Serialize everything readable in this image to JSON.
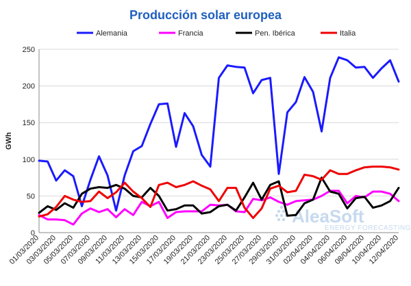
{
  "chart_data": {
    "type": "line",
    "title": "Producción solar europea",
    "ylabel": "GWh",
    "xlabel": "",
    "ylim": [
      0,
      250
    ],
    "yticks": [
      0,
      50,
      100,
      150,
      200,
      250
    ],
    "grid": "horizontal",
    "legend": "top",
    "x": [
      "01/03/2020",
      "02/03/2020",
      "03/03/2020",
      "04/03/2020",
      "05/03/2020",
      "06/03/2020",
      "07/03/2020",
      "08/03/2020",
      "09/03/2020",
      "10/03/2020",
      "11/03/2020",
      "12/03/2020",
      "13/03/2020",
      "14/03/2020",
      "15/03/2020",
      "16/03/2020",
      "17/03/2020",
      "18/03/2020",
      "19/03/2020",
      "20/03/2020",
      "21/03/2020",
      "22/03/2020",
      "23/03/2020",
      "24/03/2020",
      "25/03/2020",
      "26/03/2020",
      "27/03/2020",
      "28/03/2020",
      "29/03/2020",
      "30/03/2020",
      "31/03/2020",
      "01/04/2020",
      "02/04/2020",
      "03/04/2020",
      "04/04/2020",
      "05/04/2020",
      "06/04/2020",
      "07/04/2020",
      "08/04/2020",
      "09/04/2020",
      "10/04/2020",
      "11/04/2020",
      "12/04/2020"
    ],
    "xticks": [
      "01/03/2020",
      "03/03/2020",
      "05/03/2020",
      "07/03/2020",
      "09/03/2020",
      "11/03/2020",
      "13/03/2020",
      "15/03/2020",
      "17/03/2020",
      "19/03/2020",
      "21/03/2020",
      "23/03/2020",
      "25/03/2020",
      "27/03/2020",
      "29/03/2020",
      "31/03/2020",
      "02/04/2020",
      "04/04/2020",
      "06/04/2020",
      "08/04/2020",
      "10/04/2020",
      "12/04/2020"
    ],
    "series": [
      {
        "name": "Alemania",
        "color": "#1a1aff",
        "values": [
          98,
          97,
          71,
          85,
          77,
          36,
          72,
          104,
          78,
          30,
          78,
          111,
          118,
          148,
          175,
          176,
          117,
          163,
          145,
          106,
          90,
          211,
          228,
          226,
          225,
          190,
          208,
          211,
          80,
          164,
          178,
          212,
          192,
          138,
          211,
          239,
          235,
          225,
          226,
          211,
          224,
          235,
          206
        ]
      },
      {
        "name": "Francia",
        "color": "#ff00ff",
        "values": [
          24,
          18,
          18,
          17,
          11,
          26,
          33,
          28,
          32,
          21,
          32,
          24,
          42,
          36,
          42,
          20,
          28,
          29,
          29,
          29,
          38,
          37,
          38,
          29,
          28,
          46,
          44,
          48,
          42,
          38,
          43,
          44,
          45,
          50,
          57,
          57,
          40,
          50,
          48,
          56,
          56,
          53,
          43
        ]
      },
      {
        "name": "Pen. Ibérica",
        "color": "#000000",
        "values": [
          27,
          36,
          31,
          40,
          34,
          53,
          60,
          62,
          61,
          65,
          60,
          50,
          48,
          61,
          50,
          30,
          32,
          37,
          37,
          26,
          28,
          36,
          38,
          30,
          48,
          68,
          45,
          65,
          70,
          23,
          24,
          40,
          45,
          75,
          56,
          53,
          33,
          47,
          49,
          34,
          37,
          43,
          61
        ]
      },
      {
        "name": "Italia",
        "color": "#ee0000",
        "values": [
          22,
          25,
          35,
          50,
          45,
          42,
          43,
          56,
          47,
          55,
          68,
          56,
          47,
          35,
          65,
          68,
          62,
          65,
          70,
          64,
          59,
          43,
          61,
          61,
          34,
          20,
          33,
          60,
          64,
          55,
          57,
          79,
          77,
          72,
          85,
          80,
          80,
          85,
          89,
          90,
          90,
          89,
          86
        ]
      }
    ]
  },
  "watermark": {
    "brand": "AleaSoft",
    "tagline": "ENERGY FORECASTING"
  }
}
